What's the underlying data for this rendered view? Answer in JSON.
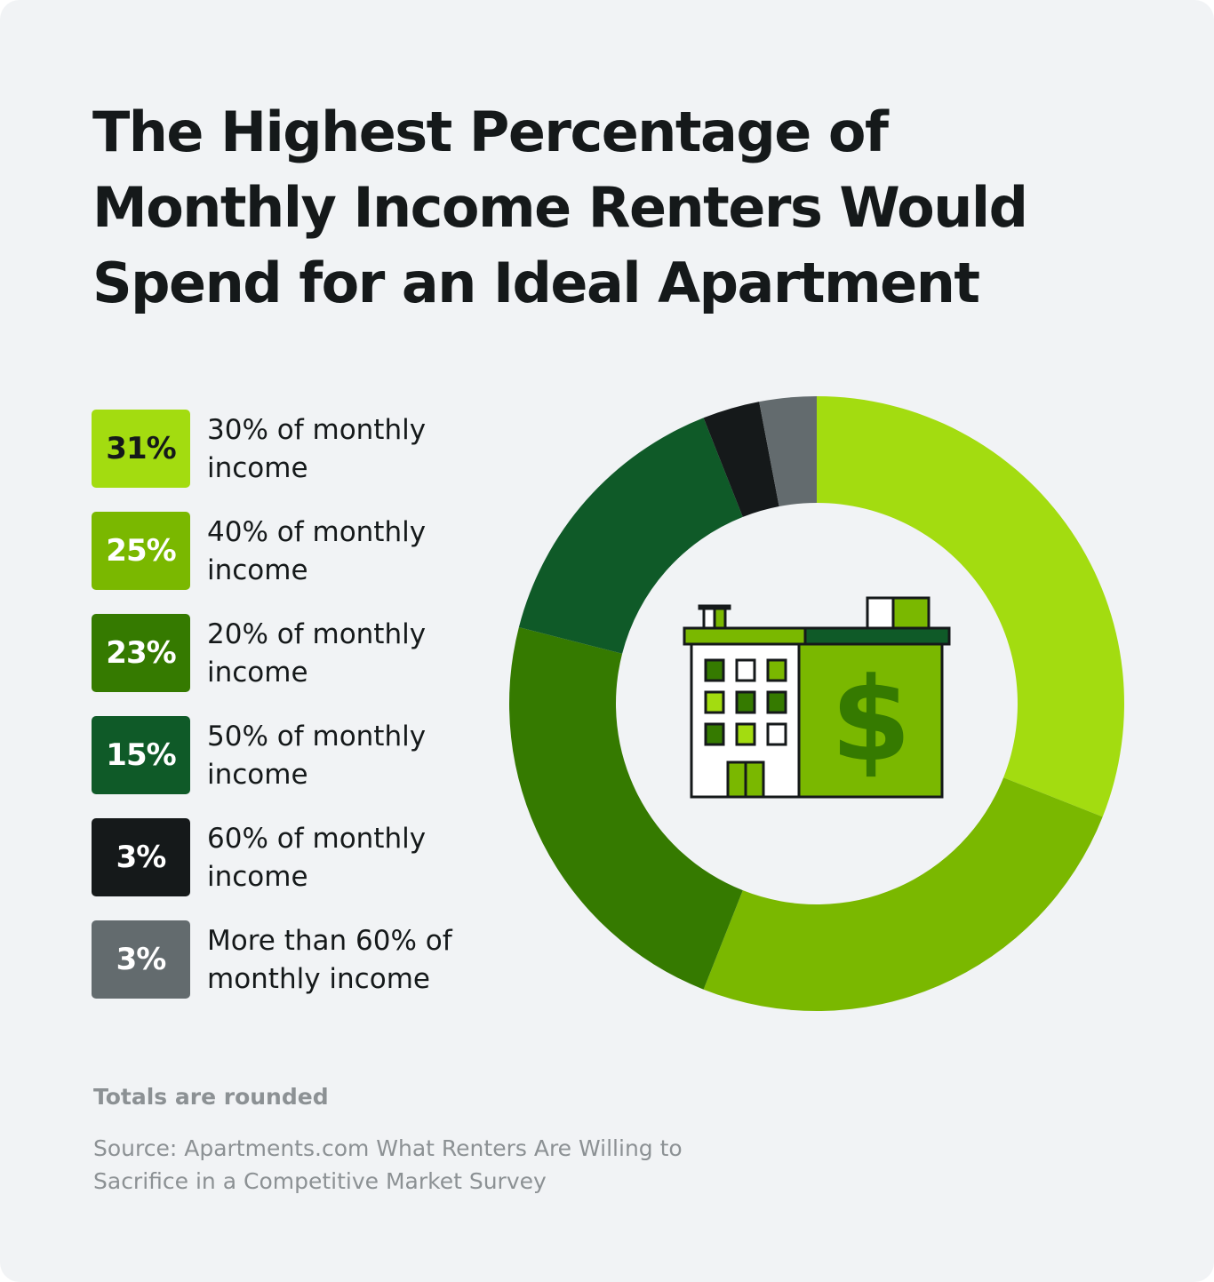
{
  "title": "The Highest Percentage of Monthly Income Renters Would Spend for an Ideal Apartment",
  "chart_data": {
    "type": "pie",
    "variant": "donut",
    "title": "The Highest Percentage of Monthly Income Renters Would Spend for an Ideal Apartment",
    "categories": [
      "30% of monthly income",
      "40% of monthly income",
      "20% of monthly income",
      "50% of monthly income",
      "60% of monthly income",
      "More than 60% of monthly income"
    ],
    "values": [
      31,
      25,
      23,
      15,
      3,
      3
    ],
    "value_labels": [
      "31%",
      "25%",
      "23%",
      "15%",
      "3%",
      "3%"
    ],
    "colors": [
      "#a3dc10",
      "#7ab800",
      "#357a00",
      "#0f5a28",
      "#15191a",
      "#636b6e"
    ],
    "label_colors": [
      "#15191a",
      "#ffffff",
      "#ffffff",
      "#ffffff",
      "#ffffff",
      "#ffffff"
    ],
    "legend_position": "left",
    "start": "top",
    "direction": "clockwise",
    "center_icon": "apartment-building-dollar-icon"
  },
  "footnote": "Totals are rounded",
  "source": "Source: Apartments.com What Renters Are Willing to Sacrifice in a Competitive Market Survey",
  "background": "#f1f3f5"
}
